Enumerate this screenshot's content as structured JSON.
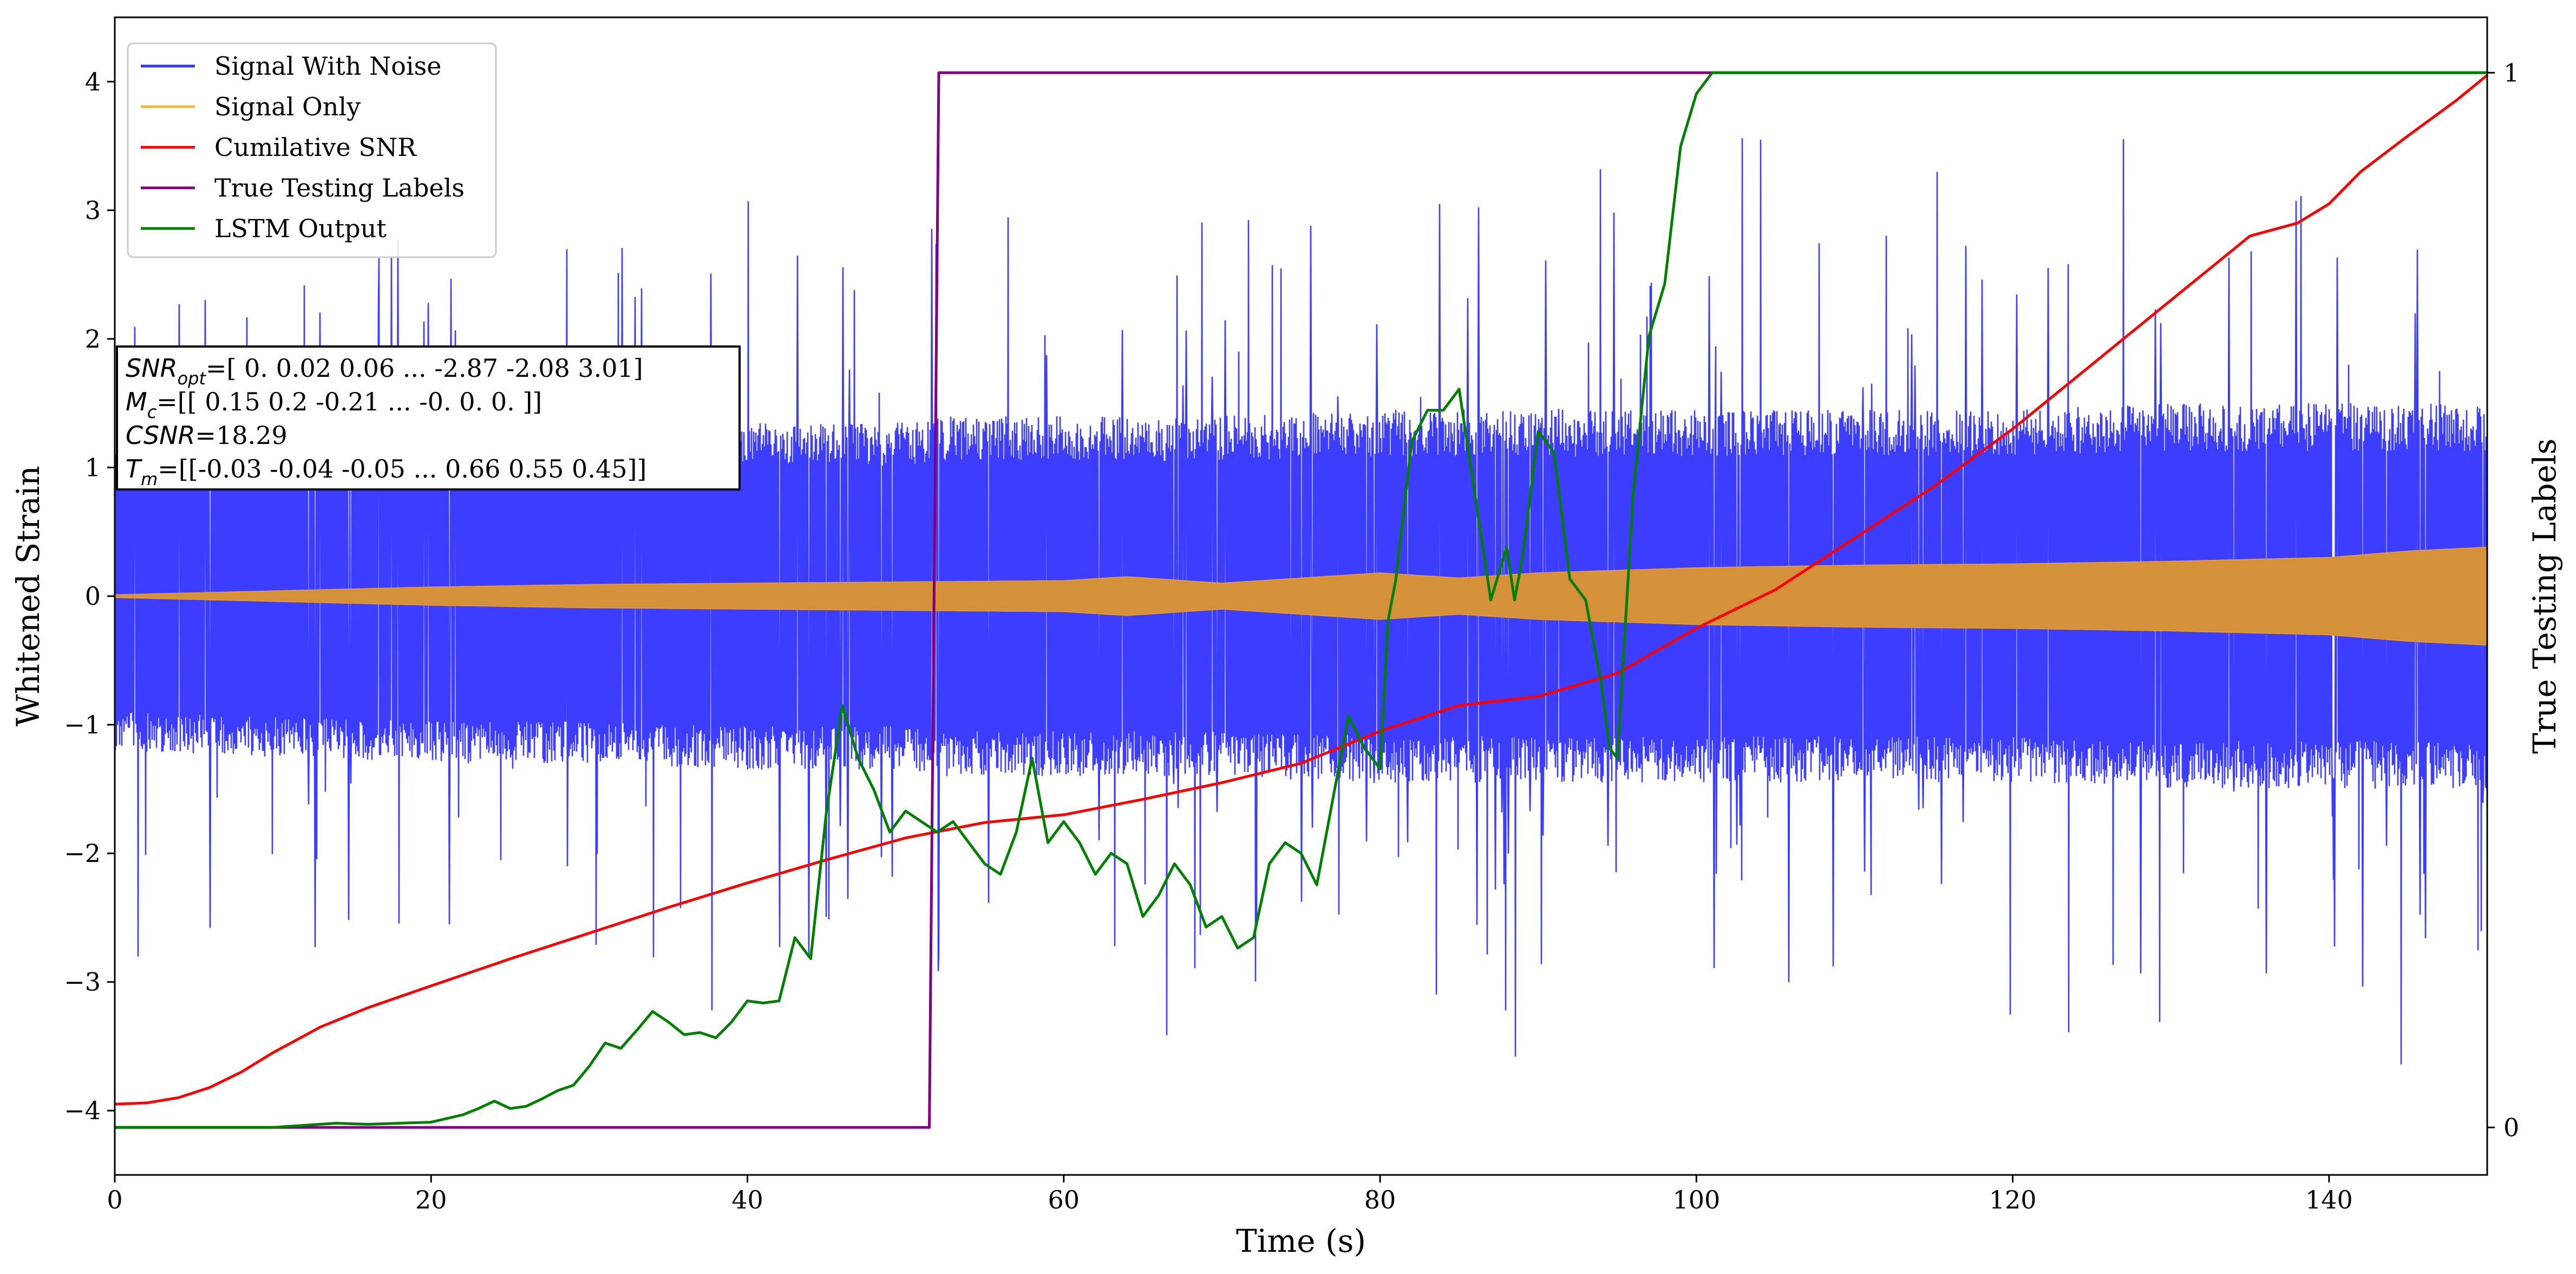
{
  "chart_data": {
    "type": "line",
    "xlabel": "Time (s)",
    "ylabel": "Whitened Strain",
    "ylabel_right": "True Testing Labels",
    "xlim": [
      0,
      150
    ],
    "ylim": [
      -4.5,
      4.5
    ],
    "ylim_right": [
      -0.045,
      1.0525
    ],
    "x_ticks": [
      0,
      20,
      40,
      60,
      80,
      100,
      120,
      140
    ],
    "y_ticks": [
      -4,
      -3,
      -2,
      -1,
      0,
      1,
      2,
      3,
      4
    ],
    "y_ticks_right": [
      0,
      1
    ],
    "legend_position": "top-left",
    "annotation": {
      "lines": [
        {
          "var": "SNR",
          "sub": "opt",
          "text": "=[ 0.    0.02  0.06 ... -2.87 -2.08  3.01]"
        },
        {
          "var": "M",
          "sub": "c",
          "text": "=[[ 0.15  0.2  -0.21 ... -0.    0.    0.  ]]"
        },
        {
          "var": "CSNR",
          "sub": "",
          "text": "=18.29"
        },
        {
          "var": "T",
          "sub": "m",
          "text": "=[[-0.03 -0.04 -0.05 ...  0.66  0.55  0.45]]"
        }
      ]
    },
    "series": [
      {
        "name": "Signal With Noise",
        "color": "#3333ff",
        "axis": "left",
        "envelope": {
          "x": [
            0,
            10,
            20,
            30,
            40,
            50,
            52,
            60,
            70,
            80,
            90,
            100,
            110,
            120,
            130,
            140,
            150
          ],
          "band_upper": [
            1.2,
            1.25,
            1.3,
            1.3,
            1.35,
            1.35,
            1.4,
            1.4,
            1.4,
            1.45,
            1.45,
            1.45,
            1.45,
            1.45,
            1.5,
            1.5,
            1.5
          ],
          "band_lower": [
            -1.2,
            -1.25,
            -1.3,
            -1.3,
            -1.35,
            -1.35,
            -1.4,
            -1.4,
            -1.4,
            -1.45,
            -1.45,
            -1.45,
            -1.45,
            -1.45,
            -1.5,
            -1.5,
            -1.5
          ],
          "peak_max": 3.7,
          "peak_min": -4.15
        }
      },
      {
        "name": "Signal Only",
        "color": "#e69a2e",
        "axis": "left",
        "envelope": {
          "x": [
            0,
            10,
            20,
            30,
            40,
            50,
            60,
            64,
            70,
            75,
            80,
            85,
            90,
            95,
            100,
            110,
            120,
            130,
            140,
            145,
            150
          ],
          "amplitude": [
            0.01,
            0.04,
            0.07,
            0.09,
            0.1,
            0.11,
            0.12,
            0.15,
            0.1,
            0.14,
            0.18,
            0.14,
            0.18,
            0.2,
            0.22,
            0.24,
            0.25,
            0.27,
            0.3,
            0.35,
            0.38
          ]
        }
      },
      {
        "name": "Cumilative SNR",
        "color": "#ff0000",
        "axis": "left",
        "x": [
          0,
          2,
          4,
          6,
          8,
          10,
          13,
          16,
          20,
          25,
          30,
          35,
          40,
          45,
          50,
          55,
          60,
          65,
          70,
          75,
          80,
          85,
          90,
          95,
          100,
          105,
          110,
          115,
          120,
          125,
          130,
          135,
          138,
          140,
          142,
          145,
          148,
          150
        ],
        "y": [
          -3.95,
          -3.94,
          -3.9,
          -3.82,
          -3.7,
          -3.55,
          -3.35,
          -3.2,
          -3.03,
          -2.82,
          -2.62,
          -2.42,
          -2.23,
          -2.05,
          -1.88,
          -1.76,
          -1.7,
          -1.58,
          -1.45,
          -1.3,
          -1.05,
          -0.85,
          -0.78,
          -0.6,
          -0.25,
          0.05,
          0.45,
          0.85,
          1.3,
          1.8,
          2.3,
          2.8,
          2.9,
          3.05,
          3.3,
          3.58,
          3.85,
          4.05
        ]
      },
      {
        "name": "True Testing Labels",
        "color": "#800080",
        "axis": "right",
        "x": [
          0,
          51.5,
          52.1,
          150
        ],
        "y": [
          0,
          0,
          1,
          1
        ]
      },
      {
        "name": "LSTM Output",
        "color": "#007f00",
        "axis": "right",
        "x": [
          0,
          5,
          10,
          14,
          16,
          18,
          20,
          22,
          23,
          24,
          25,
          26,
          27,
          28,
          29,
          30,
          31,
          32,
          33,
          34,
          35,
          36,
          37,
          38,
          39,
          40,
          41,
          42,
          43,
          44,
          45,
          46,
          47,
          48,
          49,
          50,
          51,
          52,
          53,
          54,
          55,
          56,
          57,
          58,
          59,
          60,
          61,
          62,
          63,
          64,
          65,
          66,
          67,
          68,
          69,
          70,
          71,
          72,
          73,
          74,
          75,
          76,
          77,
          78,
          79,
          80,
          80.5,
          81,
          82,
          83,
          84,
          85,
          86,
          87,
          88,
          88.5,
          89,
          90,
          91,
          92,
          93,
          94,
          94.5,
          95,
          96,
          97,
          98,
          99,
          100,
          101,
          102,
          105,
          110,
          120,
          130,
          140,
          150
        ],
        "y": [
          0,
          0,
          0,
          0.004,
          0.003,
          0.004,
          0.005,
          0.012,
          0.018,
          0.025,
          0.018,
          0.02,
          0.027,
          0.035,
          0.04,
          0.058,
          0.08,
          0.075,
          0.092,
          0.11,
          0.1,
          0.088,
          0.09,
          0.085,
          0.1,
          0.12,
          0.118,
          0.12,
          0.18,
          0.16,
          0.3,
          0.4,
          0.35,
          0.32,
          0.28,
          0.3,
          0.29,
          0.28,
          0.29,
          0.27,
          0.25,
          0.24,
          0.28,
          0.35,
          0.27,
          0.29,
          0.27,
          0.24,
          0.26,
          0.25,
          0.2,
          0.22,
          0.25,
          0.23,
          0.19,
          0.2,
          0.17,
          0.18,
          0.25,
          0.27,
          0.26,
          0.23,
          0.31,
          0.39,
          0.36,
          0.34,
          0.48,
          0.52,
          0.65,
          0.68,
          0.68,
          0.7,
          0.6,
          0.5,
          0.55,
          0.5,
          0.54,
          0.66,
          0.64,
          0.52,
          0.5,
          0.42,
          0.36,
          0.35,
          0.6,
          0.75,
          0.8,
          0.93,
          0.98,
          1,
          1,
          1,
          1,
          1,
          1,
          1,
          1
        ]
      }
    ]
  }
}
